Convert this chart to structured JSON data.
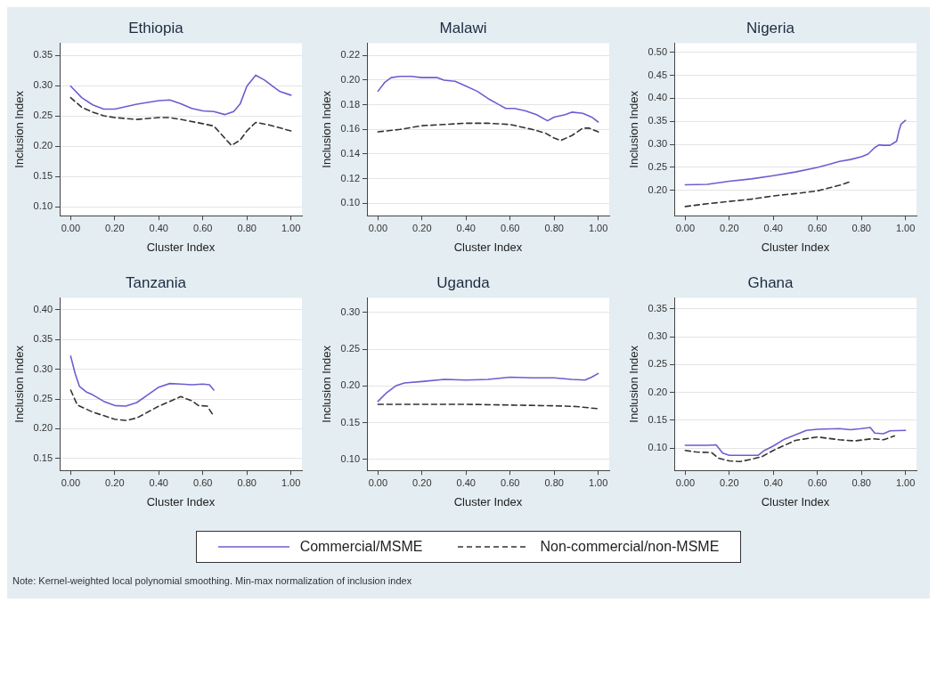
{
  "chart_data": [
    {
      "type": "line",
      "title": "Ethiopia",
      "xlabel": "Cluster Index",
      "ylabel": "Inclusion Index",
      "xlim": [
        -0.05,
        1.05
      ],
      "xticks": [
        {
          "value": 0,
          "label": "0.00"
        },
        {
          "value": 0.2,
          "label": "0.20"
        },
        {
          "value": 0.4,
          "label": "0.40"
        },
        {
          "value": 0.6,
          "label": "0.60"
        },
        {
          "value": 0.8,
          "label": "0.80"
        },
        {
          "value": 1,
          "label": "1.00"
        }
      ],
      "ylim": [
        0.085,
        0.37
      ],
      "yticks": [
        {
          "value": 0.1,
          "label": "0.10"
        },
        {
          "value": 0.15,
          "label": "0.15"
        },
        {
          "value": 0.2,
          "label": "0.20"
        },
        {
          "value": 0.25,
          "label": "0.25"
        },
        {
          "value": 0.3,
          "label": "0.30"
        },
        {
          "value": 0.35,
          "label": "0.35"
        }
      ],
      "grid": "y",
      "marker": "none",
      "legend": "bottom",
      "annotations": [
        "Note: Kernel-weighted local polynomial smoothing. Min-max normalization of inclusion index"
      ],
      "series": [
        {
          "name": "Commercial/MSME",
          "color": "#6a5fd0",
          "line_style": "solid",
          "x": [
            0,
            0.05,
            0.1,
            0.15,
            0.2,
            0.25,
            0.3,
            0.35,
            0.4,
            0.45,
            0.5,
            0.55,
            0.6,
            0.65,
            0.7,
            0.74,
            0.77,
            0.8,
            0.84,
            0.88,
            0.92,
            0.95,
            1
          ],
          "values": [
            0.299,
            0.28,
            0.268,
            0.261,
            0.261,
            0.265,
            0.269,
            0.272,
            0.275,
            0.276,
            0.27,
            0.262,
            0.258,
            0.257,
            0.252,
            0.257,
            0.27,
            0.299,
            0.317,
            0.309,
            0.298,
            0.29,
            0.284
          ]
        },
        {
          "name": "Non-commercial/non-MSME",
          "color": "#333333",
          "line_style": "dashed",
          "x": [
            0,
            0.05,
            0.1,
            0.15,
            0.2,
            0.3,
            0.4,
            0.45,
            0.5,
            0.6,
            0.65,
            0.7,
            0.73,
            0.77,
            0.8,
            0.84,
            0.9,
            1
          ],
          "values": [
            0.28,
            0.264,
            0.256,
            0.25,
            0.247,
            0.244,
            0.247,
            0.247,
            0.244,
            0.237,
            0.233,
            0.213,
            0.201,
            0.21,
            0.225,
            0.239,
            0.235,
            0.225
          ]
        }
      ]
    },
    {
      "type": "line",
      "title": "Malawi",
      "xlabel": "Cluster Index",
      "ylabel": "Inclusion Index",
      "xlim": [
        -0.05,
        1.05
      ],
      "xticks": [
        {
          "value": 0,
          "label": "0.00"
        },
        {
          "value": 0.2,
          "label": "0.20"
        },
        {
          "value": 0.4,
          "label": "0.40"
        },
        {
          "value": 0.6,
          "label": "0.60"
        },
        {
          "value": 0.8,
          "label": "0.80"
        },
        {
          "value": 1,
          "label": "1.00"
        }
      ],
      "ylim": [
        0.09,
        0.23
      ],
      "yticks": [
        {
          "value": 0.1,
          "label": "0.10"
        },
        {
          "value": 0.12,
          "label": "0.12"
        },
        {
          "value": 0.14,
          "label": "0.14"
        },
        {
          "value": 0.16,
          "label": "0.16"
        },
        {
          "value": 0.18,
          "label": "0.18"
        },
        {
          "value": 0.2,
          "label": "0.20"
        },
        {
          "value": 0.22,
          "label": "0.22"
        }
      ],
      "grid": "y",
      "marker": "none",
      "series": [
        {
          "color": "#6a5fd0",
          "line_style": "solid",
          "x": [
            0,
            0.03,
            0.06,
            0.1,
            0.15,
            0.2,
            0.27,
            0.3,
            0.35,
            0.4,
            0.45,
            0.5,
            0.55,
            0.58,
            0.62,
            0.67,
            0.72,
            0.77,
            0.8,
            0.85,
            0.88,
            0.93,
            0.97,
            1
          ],
          "values": [
            0.191,
            0.198,
            0.202,
            0.203,
            0.203,
            0.202,
            0.202,
            0.2,
            0.199,
            0.195,
            0.191,
            0.185,
            0.18,
            0.177,
            0.177,
            0.175,
            0.172,
            0.167,
            0.17,
            0.172,
            0.174,
            0.173,
            0.17,
            0.166
          ]
        },
        {
          "color": "#333333",
          "line_style": "dashed",
          "x": [
            0,
            0.1,
            0.2,
            0.3,
            0.4,
            0.5,
            0.6,
            0.7,
            0.76,
            0.8,
            0.83,
            0.88,
            0.93,
            0.96,
            1
          ],
          "values": [
            0.158,
            0.16,
            0.163,
            0.164,
            0.165,
            0.165,
            0.164,
            0.16,
            0.157,
            0.153,
            0.151,
            0.155,
            0.161,
            0.161,
            0.158
          ]
        }
      ]
    },
    {
      "type": "line",
      "title": "Nigeria",
      "xlabel": "Cluster Index",
      "ylabel": "Inclusion Index",
      "xlim": [
        -0.05,
        1.05
      ],
      "xticks": [
        {
          "value": 0,
          "label": "0.00"
        },
        {
          "value": 0.2,
          "label": "0.20"
        },
        {
          "value": 0.4,
          "label": "0.40"
        },
        {
          "value": 0.6,
          "label": "0.60"
        },
        {
          "value": 0.8,
          "label": "0.80"
        },
        {
          "value": 1,
          "label": "1.00"
        }
      ],
      "ylim": [
        0.145,
        0.52
      ],
      "yticks": [
        {
          "value": 0.2,
          "label": "0.20"
        },
        {
          "value": 0.25,
          "label": "0.25"
        },
        {
          "value": 0.3,
          "label": "0.30"
        },
        {
          "value": 0.35,
          "label": "0.35"
        },
        {
          "value": 0.4,
          "label": "0.40"
        },
        {
          "value": 0.45,
          "label": "0.45"
        },
        {
          "value": 0.5,
          "label": "0.50"
        }
      ],
      "grid": "y",
      "marker": "none",
      "series": [
        {
          "color": "#6a5fd0",
          "line_style": "solid",
          "x": [
            0,
            0.1,
            0.2,
            0.3,
            0.4,
            0.5,
            0.6,
            0.65,
            0.7,
            0.75,
            0.8,
            0.83,
            0.86,
            0.88,
            0.9,
            0.93,
            0.96,
            0.97,
            0.98,
            1
          ],
          "values": [
            0.212,
            0.213,
            0.22,
            0.225,
            0.232,
            0.24,
            0.25,
            0.256,
            0.263,
            0.267,
            0.273,
            0.279,
            0.293,
            0.299,
            0.298,
            0.298,
            0.307,
            0.329,
            0.344,
            0.352
          ]
        },
        {
          "color": "#333333",
          "line_style": "dashed",
          "x": [
            0,
            0.1,
            0.2,
            0.3,
            0.4,
            0.5,
            0.6,
            0.7,
            0.75
          ],
          "values": [
            0.165,
            0.171,
            0.176,
            0.181,
            0.188,
            0.193,
            0.199,
            0.211,
            0.219
          ]
        }
      ]
    },
    {
      "type": "line",
      "title": "Tanzania",
      "xlabel": "Cluster Index",
      "ylabel": "Inclusion Index",
      "xlim": [
        -0.05,
        1.05
      ],
      "xticks": [
        {
          "value": 0,
          "label": "0.00"
        },
        {
          "value": 0.2,
          "label": "0.20"
        },
        {
          "value": 0.4,
          "label": "0.40"
        },
        {
          "value": 0.6,
          "label": "0.60"
        },
        {
          "value": 0.8,
          "label": "0.80"
        },
        {
          "value": 1,
          "label": "1.00"
        }
      ],
      "ylim": [
        0.13,
        0.42
      ],
      "yticks": [
        {
          "value": 0.15,
          "label": "0.15"
        },
        {
          "value": 0.2,
          "label": "0.20"
        },
        {
          "value": 0.25,
          "label": "0.25"
        },
        {
          "value": 0.3,
          "label": "0.30"
        },
        {
          "value": 0.35,
          "label": "0.35"
        },
        {
          "value": 0.4,
          "label": "0.40"
        }
      ],
      "grid": "y",
      "marker": "none",
      "series": [
        {
          "color": "#6a5fd0",
          "line_style": "solid",
          "x": [
            0,
            0.02,
            0.04,
            0.07,
            0.1,
            0.15,
            0.2,
            0.25,
            0.3,
            0.35,
            0.4,
            0.45,
            0.5,
            0.55,
            0.6,
            0.63,
            0.65
          ],
          "values": [
            0.322,
            0.293,
            0.271,
            0.262,
            0.257,
            0.246,
            0.239,
            0.238,
            0.244,
            0.257,
            0.27,
            0.276,
            0.275,
            0.274,
            0.275,
            0.274,
            0.265
          ]
        },
        {
          "color": "#333333",
          "line_style": "dashed",
          "x": [
            0,
            0.03,
            0.1,
            0.2,
            0.25,
            0.3,
            0.4,
            0.5,
            0.55,
            0.58,
            0.62,
            0.65
          ],
          "values": [
            0.265,
            0.24,
            0.228,
            0.216,
            0.214,
            0.218,
            0.238,
            0.254,
            0.247,
            0.239,
            0.238,
            0.221
          ]
        }
      ]
    },
    {
      "type": "line",
      "title": "Uganda",
      "xlabel": "Cluster Index",
      "ylabel": "Inclusion Index",
      "xlim": [
        -0.05,
        1.05
      ],
      "xticks": [
        {
          "value": 0,
          "label": "0.00"
        },
        {
          "value": 0.2,
          "label": "0.20"
        },
        {
          "value": 0.4,
          "label": "0.40"
        },
        {
          "value": 0.6,
          "label": "0.60"
        },
        {
          "value": 0.8,
          "label": "0.80"
        },
        {
          "value": 1,
          "label": "1.00"
        }
      ],
      "ylim": [
        0.085,
        0.32
      ],
      "yticks": [
        {
          "value": 0.1,
          "label": "0.10"
        },
        {
          "value": 0.15,
          "label": "0.15"
        },
        {
          "value": 0.2,
          "label": "0.20"
        },
        {
          "value": 0.25,
          "label": "0.25"
        },
        {
          "value": 0.3,
          "label": "0.30"
        }
      ],
      "grid": "y",
      "marker": "none",
      "series": [
        {
          "color": "#6a5fd0",
          "line_style": "solid",
          "x": [
            0,
            0.04,
            0.08,
            0.12,
            0.2,
            0.3,
            0.4,
            0.5,
            0.6,
            0.7,
            0.8,
            0.88,
            0.94,
            0.97,
            1
          ],
          "values": [
            0.179,
            0.191,
            0.2,
            0.204,
            0.206,
            0.209,
            0.208,
            0.209,
            0.212,
            0.211,
            0.211,
            0.209,
            0.208,
            0.212,
            0.217
          ]
        },
        {
          "color": "#333333",
          "line_style": "dashed",
          "x": [
            0,
            0.2,
            0.4,
            0.6,
            0.8,
            0.9,
            1
          ],
          "values": [
            0.175,
            0.175,
            0.175,
            0.174,
            0.173,
            0.172,
            0.169
          ]
        }
      ]
    },
    {
      "type": "line",
      "title": "Ghana",
      "xlabel": "Cluster Index",
      "ylabel": "Inclusion Index",
      "xlim": [
        -0.05,
        1.05
      ],
      "xticks": [
        {
          "value": 0,
          "label": "0.00"
        },
        {
          "value": 0.2,
          "label": "0.20"
        },
        {
          "value": 0.4,
          "label": "0.40"
        },
        {
          "value": 0.6,
          "label": "0.60"
        },
        {
          "value": 0.8,
          "label": "0.80"
        },
        {
          "value": 1,
          "label": "1.00"
        }
      ],
      "ylim": [
        0.06,
        0.37
      ],
      "yticks": [
        {
          "value": 0.1,
          "label": "0.10"
        },
        {
          "value": 0.15,
          "label": "0.15"
        },
        {
          "value": 0.2,
          "label": "0.20"
        },
        {
          "value": 0.25,
          "label": "0.25"
        },
        {
          "value": 0.3,
          "label": "0.30"
        },
        {
          "value": 0.35,
          "label": "0.35"
        }
      ],
      "grid": "y",
      "marker": "none",
      "series": [
        {
          "color": "#6a5fd0",
          "line_style": "solid",
          "x": [
            0,
            0.05,
            0.1,
            0.14,
            0.17,
            0.2,
            0.25,
            0.33,
            0.36,
            0.4,
            0.45,
            0.5,
            0.55,
            0.6,
            0.7,
            0.75,
            0.8,
            0.84,
            0.86,
            0.9,
            0.93,
            1
          ],
          "values": [
            0.105,
            0.105,
            0.105,
            0.106,
            0.091,
            0.087,
            0.087,
            0.087,
            0.096,
            0.104,
            0.116,
            0.124,
            0.132,
            0.134,
            0.135,
            0.133,
            0.135,
            0.137,
            0.127,
            0.126,
            0.131,
            0.132
          ]
        },
        {
          "color": "#333333",
          "line_style": "dashed",
          "x": [
            0,
            0.05,
            0.12,
            0.15,
            0.2,
            0.25,
            0.3,
            0.35,
            0.4,
            0.5,
            0.6,
            0.7,
            0.77,
            0.85,
            0.9,
            0.95
          ],
          "values": [
            0.096,
            0.093,
            0.092,
            0.082,
            0.077,
            0.076,
            0.08,
            0.085,
            0.096,
            0.114,
            0.12,
            0.115,
            0.113,
            0.117,
            0.115,
            0.122
          ]
        }
      ]
    }
  ]
}
